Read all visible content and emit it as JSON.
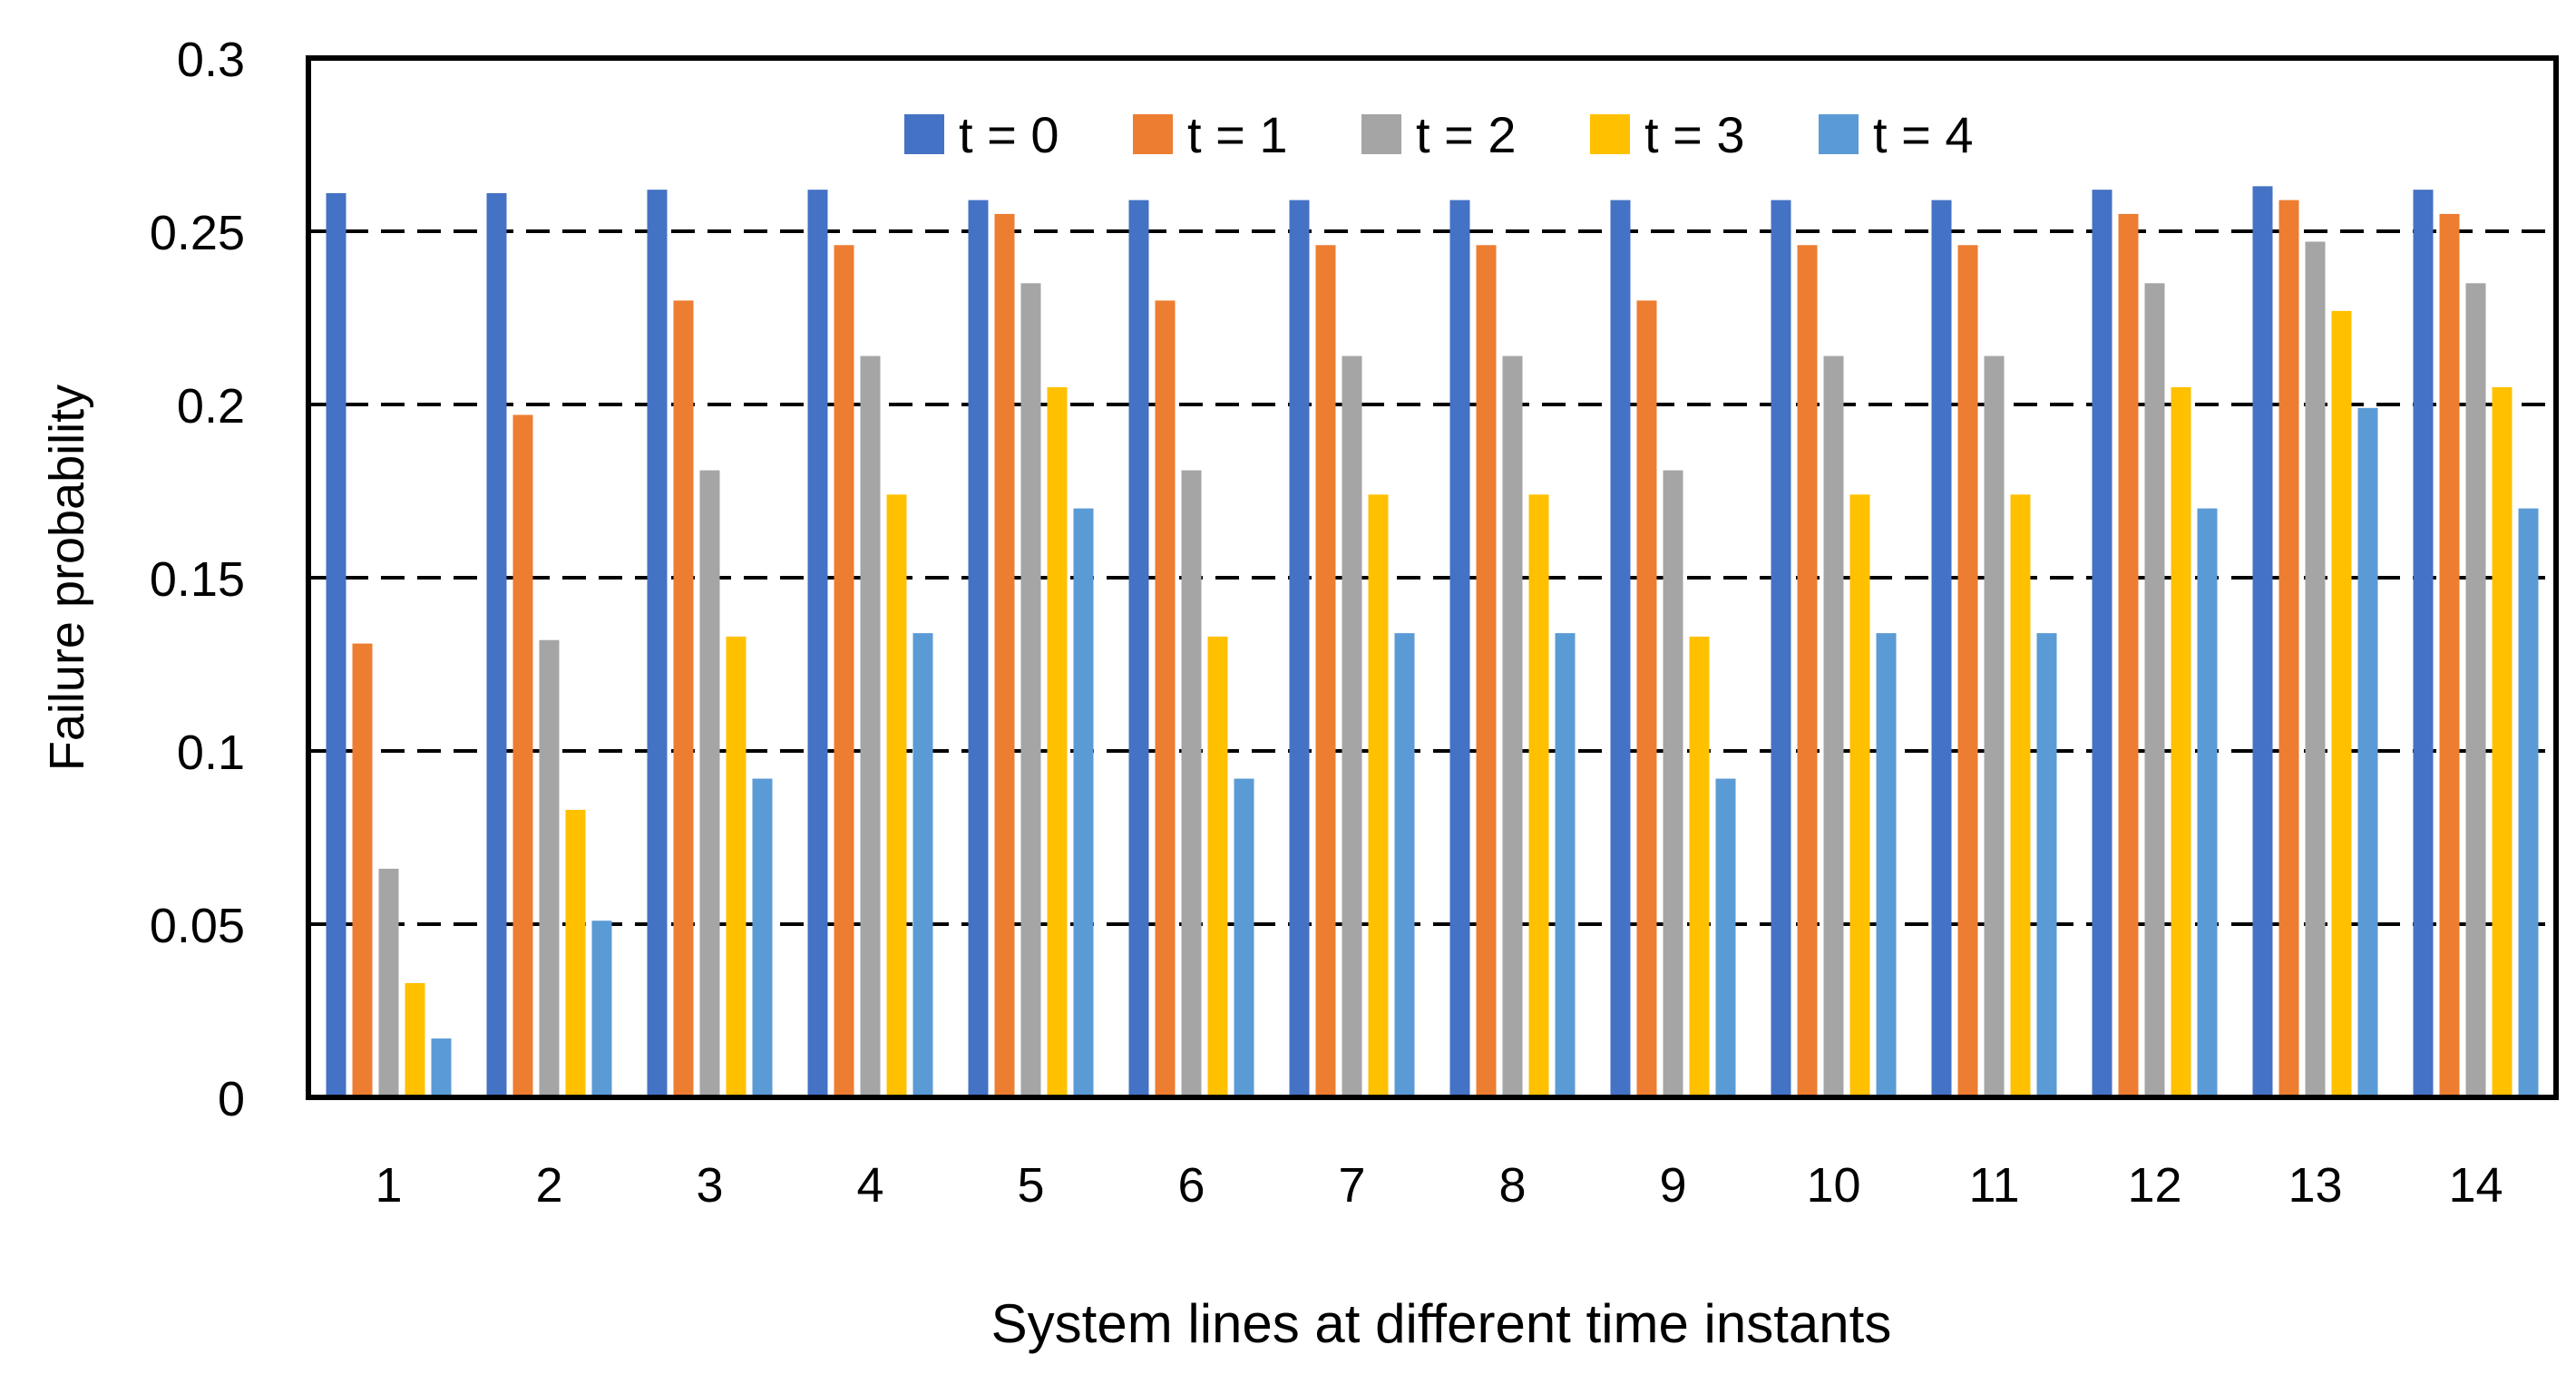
{
  "chart_data": {
    "type": "bar",
    "title": "",
    "xlabel": "System lines at different time instants",
    "ylabel": "Failure probability",
    "ylim": [
      0,
      0.3
    ],
    "yticks": [
      "0",
      "0.05",
      "0.1",
      "0.15",
      "0.2",
      "0.25",
      "0.3"
    ],
    "ytick_values": [
      0,
      0.05,
      0.1,
      0.15,
      0.2,
      0.25,
      0.3
    ],
    "grid": "horizontal dashed",
    "legend_position": "top-center",
    "categories": [
      "1",
      "2",
      "3",
      "4",
      "5",
      "6",
      "7",
      "8",
      "9",
      "10",
      "11",
      "12",
      "13",
      "14"
    ],
    "series": [
      {
        "name": "t = 0",
        "color": "#4472C4",
        "values": [
          0.261,
          0.261,
          0.262,
          0.262,
          0.259,
          0.259,
          0.259,
          0.259,
          0.259,
          0.259,
          0.259,
          0.262,
          0.263,
          0.262
        ]
      },
      {
        "name": "t = 1",
        "color": "#ED7D31",
        "values": [
          0.131,
          0.197,
          0.23,
          0.246,
          0.255,
          0.23,
          0.246,
          0.246,
          0.23,
          0.246,
          0.246,
          0.255,
          0.259,
          0.255
        ]
      },
      {
        "name": "t = 2",
        "color": "#A5A5A5",
        "values": [
          0.066,
          0.132,
          0.181,
          0.214,
          0.235,
          0.181,
          0.214,
          0.214,
          0.181,
          0.214,
          0.214,
          0.235,
          0.247,
          0.235
        ]
      },
      {
        "name": "t = 3",
        "color": "#FFC000",
        "values": [
          0.033,
          0.083,
          0.133,
          0.174,
          0.205,
          0.133,
          0.174,
          0.174,
          0.133,
          0.174,
          0.174,
          0.205,
          0.227,
          0.205
        ]
      },
      {
        "name": "t = 4",
        "color": "#5B9BD5",
        "values": [
          0.017,
          0.051,
          0.092,
          0.134,
          0.17,
          0.092,
          0.134,
          0.134,
          0.092,
          0.134,
          0.134,
          0.17,
          0.199,
          0.17
        ]
      }
    ]
  }
}
